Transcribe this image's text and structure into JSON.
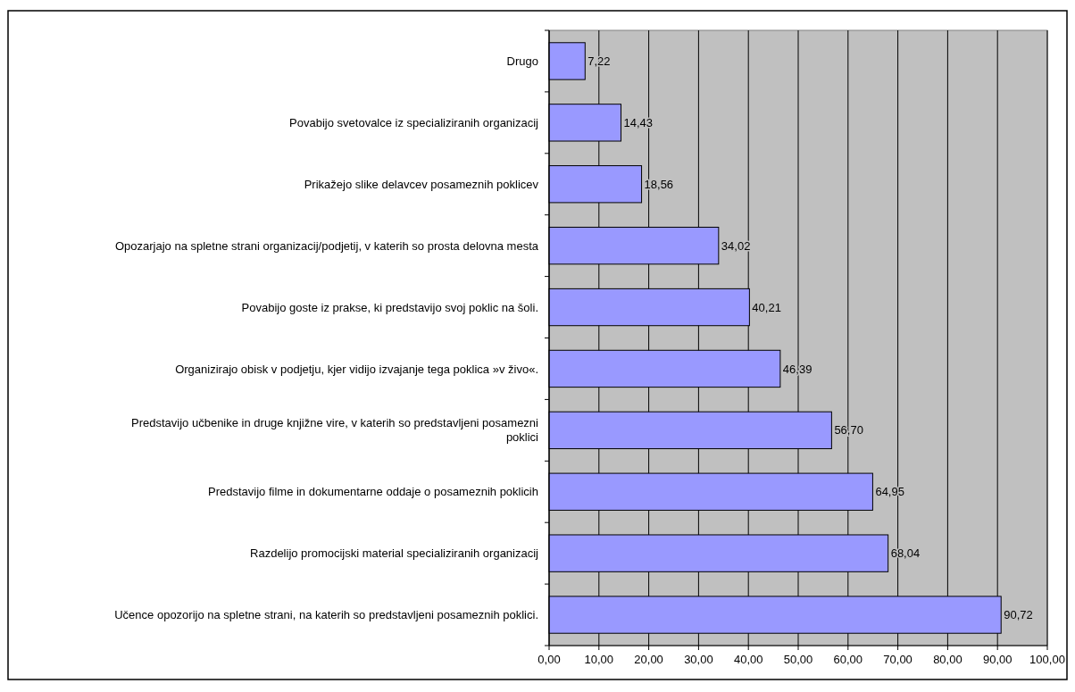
{
  "chart_data": {
    "type": "bar",
    "orientation": "horizontal",
    "categories": [
      "Drugo",
      "Povabijo svetovalce iz specializiranih organizacij",
      "Prikažejo slike delavcev posameznih poklicev",
      "Opozarjajo na spletne strani organizacij/podjetij, v katerih so prosta delovna mesta",
      "Povabijo goste iz prakse, ki predstavijo svoj poklic na šoli.",
      "Organizirajo obisk v podjetju, kjer vidijo izvajanje tega poklica »v živo«.",
      "Predstavijo učbenike in druge knjižne vire, v katerih so predstavljeni posamezni poklici",
      "Predstavijo filme in dokumentarne oddaje o posameznih poklicih",
      "Razdelijo promocijski material specializiranih organizacij",
      "Učence opozorijo na spletne strani, na katerih so predstavljeni posameznih poklici."
    ],
    "values": [
      7.22,
      14.43,
      18.56,
      34.02,
      40.21,
      46.39,
      56.7,
      64.95,
      68.04,
      90.72
    ],
    "value_labels": [
      "7,22",
      "14,43",
      "18,56",
      "34,02",
      "40,21",
      "46,39",
      "56,70",
      "64,95",
      "68,04",
      "90,72"
    ],
    "color": "#9999ff",
    "xlim": [
      0,
      100
    ],
    "xticks": [
      {
        "value": 0,
        "label": "0,00"
      },
      {
        "value": 10,
        "label": "10,00"
      },
      {
        "value": 20,
        "label": "20,00"
      },
      {
        "value": 30,
        "label": "30,00"
      },
      {
        "value": 40,
        "label": "40,00"
      },
      {
        "value": 50,
        "label": "50,00"
      },
      {
        "value": 60,
        "label": "60,00"
      },
      {
        "value": 70,
        "label": "70,00"
      },
      {
        "value": 80,
        "label": "80,00"
      },
      {
        "value": 90,
        "label": "90,00"
      },
      {
        "value": 100,
        "label": "100,00"
      }
    ],
    "grid": "x"
  }
}
